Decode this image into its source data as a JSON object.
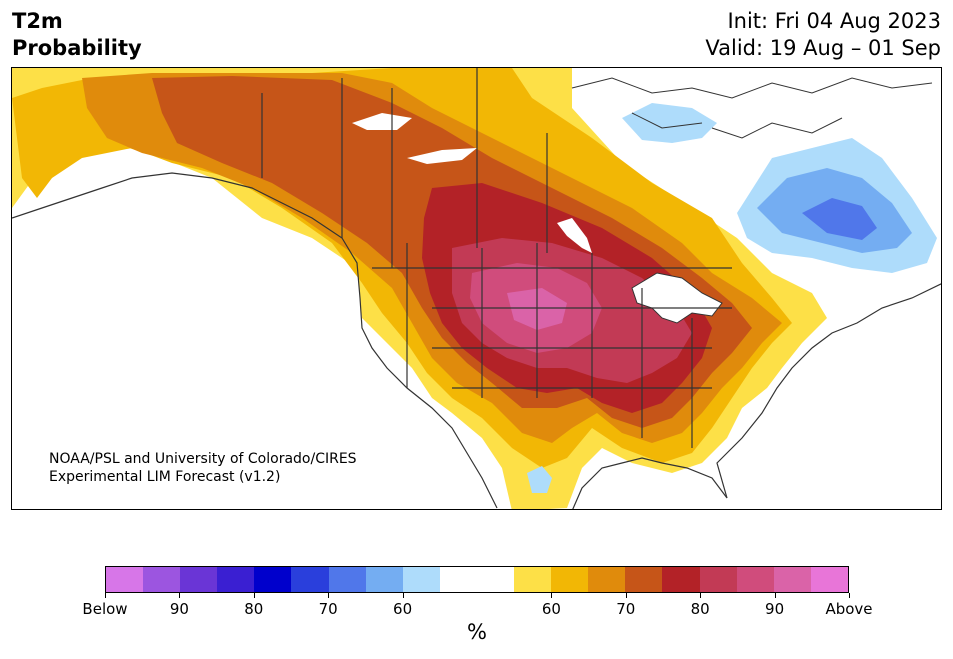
{
  "header": {
    "variable": "T2m",
    "product": "Probability",
    "init": "Init: Fri 04 Aug 2023",
    "valid": "Valid: 19 Aug – 01 Sep"
  },
  "credit": {
    "line1": "NOAA/PSL and University of Colorado/CIRES",
    "line2": "Experimental LIM Forecast (v1.2)"
  },
  "colorbar": {
    "unit": "%",
    "tick_labels": [
      "Below",
      "90",
      "80",
      "70",
      "60",
      "60",
      "70",
      "80",
      "90",
      "Above"
    ],
    "colors_below": [
      "#d776e8",
      "#9c55e0",
      "#6a35d6",
      "#3a1fd2",
      "#0000cc",
      "#2a3fdc",
      "#5077ea",
      "#74adf2",
      "#aedcfb"
    ],
    "color_neutral": "#ffffff",
    "colors_above": [
      "#fde047",
      "#f2b705",
      "#e08b0c",
      "#c65518",
      "#b32227",
      "#c23a55",
      "#d04c7c",
      "#da63a8",
      "#e875d8"
    ]
  }
}
